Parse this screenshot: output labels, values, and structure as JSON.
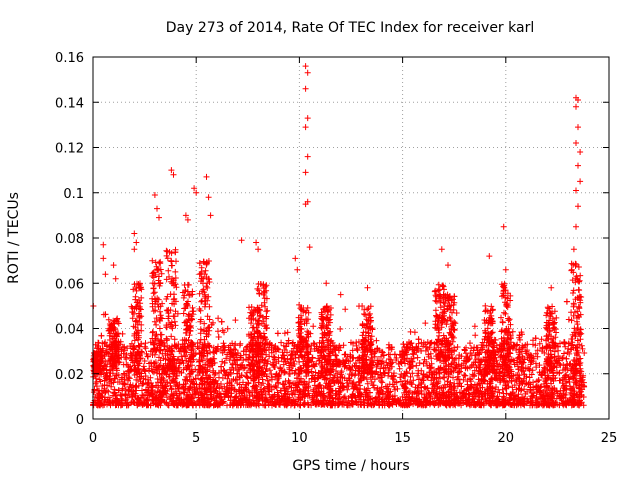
{
  "chart_data": {
    "type": "scatter",
    "title": "Day 273 of 2014, Rate Of TEC Index for receiver karl",
    "xlabel": "GPS time / hours",
    "ylabel": "ROTI / TECUs",
    "xlim": [
      0,
      25
    ],
    "ylim": [
      0,
      0.16
    ],
    "xticks": [
      0,
      5,
      10,
      15,
      20,
      25
    ],
    "xtick_labels": [
      "0",
      "5",
      "10",
      "15",
      "20",
      "25"
    ],
    "yticks": [
      0,
      0.02,
      0.04,
      0.06,
      0.08,
      0.1,
      0.12,
      0.14,
      0.16
    ],
    "ytick_labels": [
      "0",
      "0.02",
      "0.04",
      "0.06",
      "0.08",
      "0.1",
      "0.12",
      "0.14",
      "0.16"
    ],
    "grid": true,
    "marker": "+",
    "color": "#ff0000",
    "series": [
      {
        "name": "ROTI",
        "description_of_data": "Dense band of points between roughly 0.005 and 0.035 TECU/s over 0-23.8 h with notable spikes listed below",
        "points": [
          [
            0.5,
            0.077
          ],
          [
            0.5,
            0.071
          ],
          [
            0.6,
            0.064
          ],
          [
            1.0,
            0.068
          ],
          [
            1.1,
            0.062
          ],
          [
            2.0,
            0.082
          ],
          [
            2.1,
            0.078
          ],
          [
            2.0,
            0.075
          ],
          [
            3.0,
            0.099
          ],
          [
            3.1,
            0.093
          ],
          [
            3.2,
            0.089
          ],
          [
            3.8,
            0.11
          ],
          [
            3.9,
            0.108
          ],
          [
            3.6,
            0.074
          ],
          [
            4.5,
            0.09
          ],
          [
            4.6,
            0.088
          ],
          [
            4.9,
            0.102
          ],
          [
            5.0,
            0.1
          ],
          [
            5.5,
            0.107
          ],
          [
            5.6,
            0.098
          ],
          [
            5.7,
            0.09
          ],
          [
            7.2,
            0.079
          ],
          [
            7.9,
            0.078
          ],
          [
            8.0,
            0.075
          ],
          [
            9.8,
            0.071
          ],
          [
            9.9,
            0.066
          ],
          [
            10.3,
            0.156
          ],
          [
            10.4,
            0.153
          ],
          [
            10.3,
            0.146
          ],
          [
            10.4,
            0.133
          ],
          [
            10.3,
            0.129
          ],
          [
            10.4,
            0.116
          ],
          [
            10.3,
            0.109
          ],
          [
            10.4,
            0.096
          ],
          [
            10.3,
            0.095
          ],
          [
            10.5,
            0.076
          ],
          [
            11.3,
            0.06
          ],
          [
            12.0,
            0.055
          ],
          [
            13.3,
            0.058
          ],
          [
            16.9,
            0.075
          ],
          [
            17.2,
            0.068
          ],
          [
            19.2,
            0.072
          ],
          [
            19.9,
            0.085
          ],
          [
            20.0,
            0.066
          ],
          [
            22.2,
            0.058
          ],
          [
            23.4,
            0.142
          ],
          [
            23.5,
            0.141
          ],
          [
            23.4,
            0.138
          ],
          [
            23.5,
            0.129
          ],
          [
            23.4,
            0.122
          ],
          [
            23.6,
            0.118
          ],
          [
            23.5,
            0.112
          ],
          [
            23.6,
            0.105
          ],
          [
            23.4,
            0.101
          ],
          [
            23.5,
            0.094
          ],
          [
            23.4,
            0.085
          ],
          [
            23.3,
            0.075
          ],
          [
            23.2,
            0.066
          ]
        ]
      }
    ]
  }
}
